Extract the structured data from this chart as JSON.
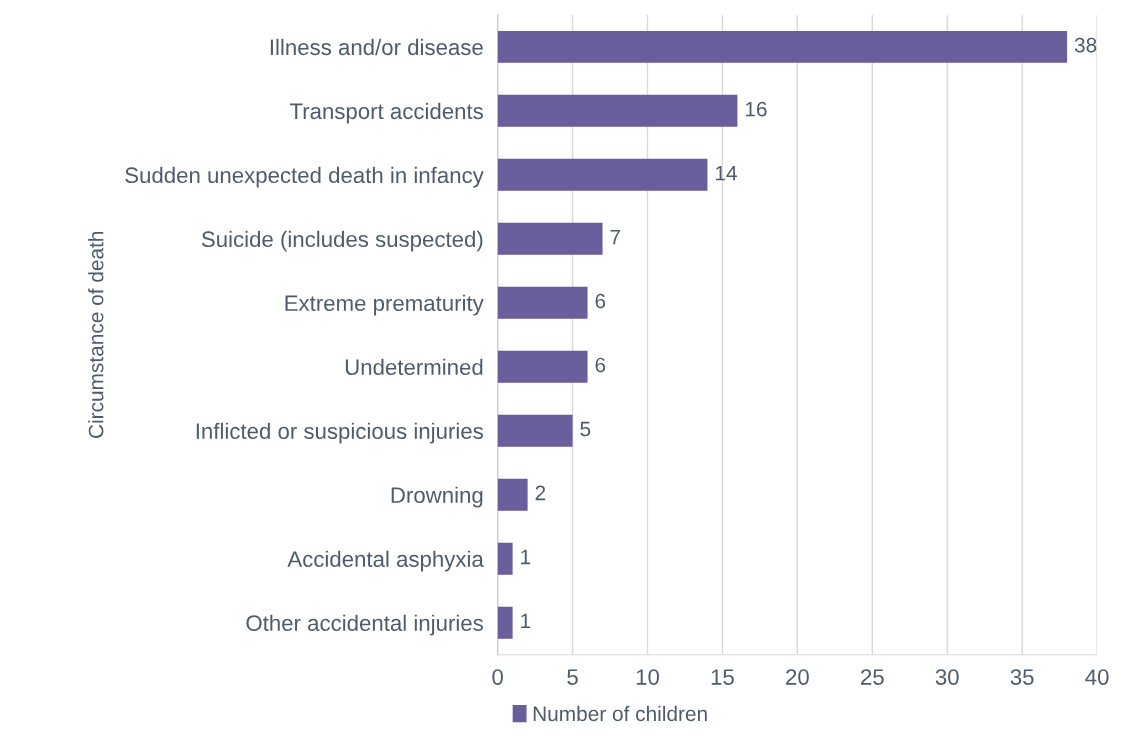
{
  "chart_data": {
    "type": "bar",
    "orientation": "horizontal",
    "ylabel": "Circumstance of death",
    "categories": [
      "Illness and/or disease",
      "Transport accidents",
      "Sudden unexpected death in infancy",
      "Suicide (includes suspected)",
      "Extreme prematurity",
      "Undetermined",
      "Inflicted or suspicious injuries",
      "Drowning",
      "Accidental asphyxia",
      "Other accidental injuries"
    ],
    "series": [
      {
        "name": "Number of children",
        "color": "#6a5d9b",
        "values": [
          38,
          16,
          14,
          7,
          6,
          6,
          5,
          2,
          1,
          1
        ]
      }
    ],
    "xlim": [
      0,
      40
    ],
    "xticks": [
      0,
      5,
      10,
      15,
      20,
      25,
      30,
      35,
      40
    ],
    "grid": "x",
    "legend": "bottom",
    "data_labels": true
  }
}
